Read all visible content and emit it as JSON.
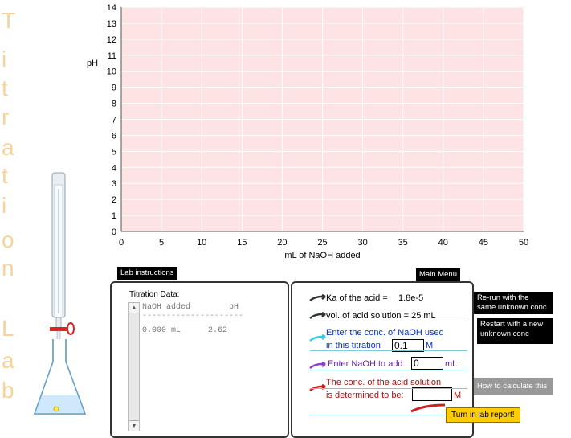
{
  "side_title": [
    "T",
    "i",
    "t",
    "r",
    "a",
    "t",
    "i",
    "o",
    "n",
    "",
    "L",
    "a",
    "b"
  ],
  "chart_data": {
    "type": "line",
    "title": "",
    "xlabel": "mL of NaOH added",
    "ylabel": "pH",
    "xlim": [
      0,
      50
    ],
    "ylim": [
      0,
      14
    ],
    "x_ticks": [
      0,
      5,
      10,
      15,
      20,
      25,
      30,
      35,
      40,
      45,
      50
    ],
    "y_ticks": [
      0,
      1,
      2,
      3,
      4,
      5,
      6,
      7,
      8,
      9,
      10,
      11,
      12,
      13,
      14
    ],
    "grid": true,
    "series": [],
    "plot_background": "#fde3e4",
    "grid_color": "#ffffff"
  },
  "buttons": {
    "lab_instructions": "Lab instructions",
    "main_menu": "Main Menu",
    "rerun": "Re-run with the same unknown conc",
    "restart": "Restart with a new unknown conc",
    "how_to": "How to calculate this",
    "turn_in": "Turn in lab report!"
  },
  "titration_data": {
    "title": "Titration Data:",
    "col_naoh": "NaOH added",
    "col_ph": "pH",
    "separator": "---------------------",
    "rows": [
      {
        "naoh": "0.000 mL",
        "ph": "2.62"
      }
    ]
  },
  "info": {
    "ka_label": "Ka of the acid =",
    "ka_value": "1.8e-5",
    "vol_label": "vol. of acid solution = 25 mL",
    "naoh_conc_line1": "Enter the conc. of NaOH used",
    "naoh_conc_line2": "in this titration",
    "naoh_conc_value": "0.1",
    "naoh_conc_unit": "M",
    "add_label": "Enter NaOH to add",
    "add_value": "0",
    "add_unit": "mL",
    "acid_conc_line1": "The conc. of the acid solution",
    "acid_conc_line2": "is determined to be:",
    "acid_conc_value": "",
    "acid_conc_unit": "M"
  },
  "colors": {
    "side_title": "#f5d39a",
    "arrow_black": "#333333",
    "arrow_cyan": "#33ccee",
    "arrow_purple": "#8844cc",
    "arrow_red": "#cc2222",
    "text_blue": "#0033cc",
    "text_purple": "#6622aa",
    "text_red": "#aa1111",
    "turn_in_bg": "#ffcc00",
    "how_to_bg": "#999999"
  }
}
